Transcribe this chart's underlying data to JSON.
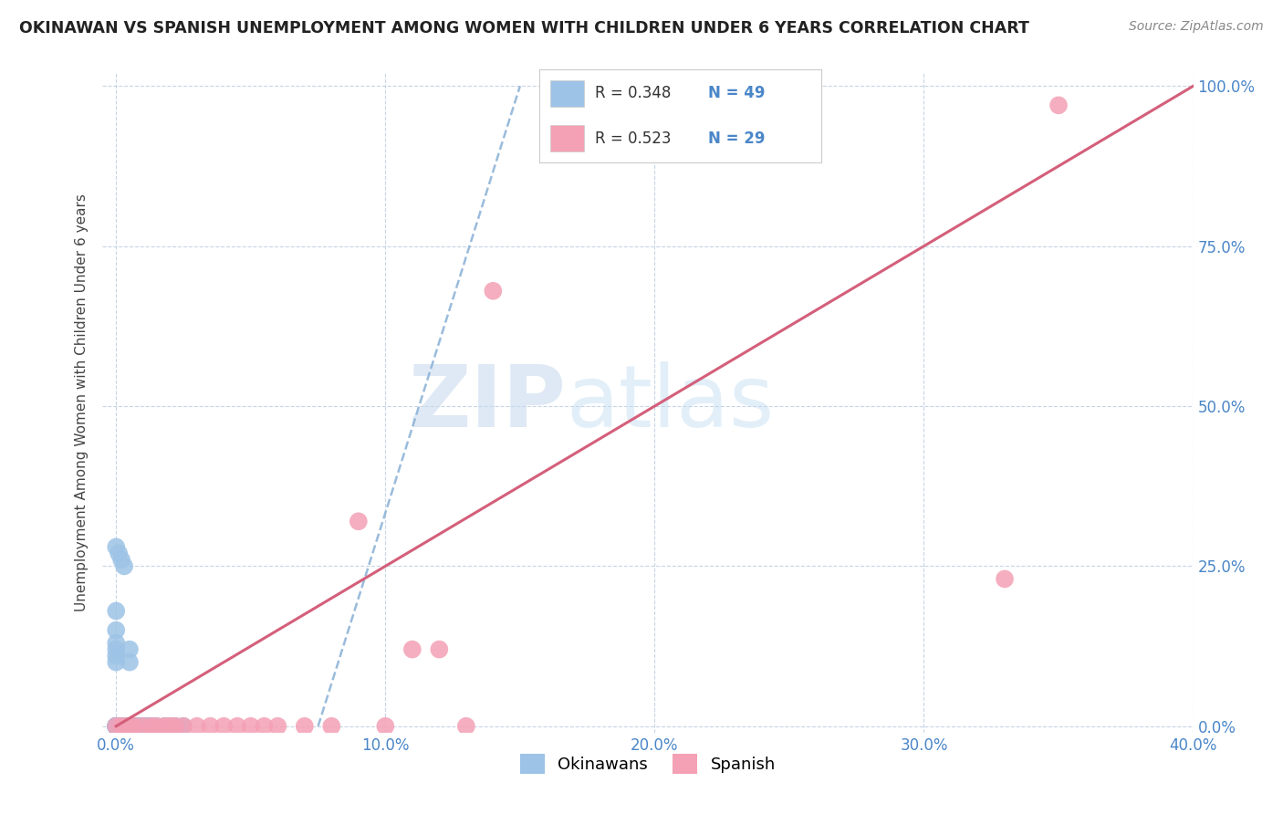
{
  "title": "OKINAWAN VS SPANISH UNEMPLOYMENT AMONG WOMEN WITH CHILDREN UNDER 6 YEARS CORRELATION CHART",
  "source": "Source: ZipAtlas.com",
  "ylabel": "Unemployment Among Women with Children Under 6 years",
  "x_tick_labels": [
    "0.0%",
    "10.0%",
    "20.0%",
    "30.0%",
    "40.0%"
  ],
  "x_tick_values": [
    0.0,
    10.0,
    20.0,
    30.0,
    40.0
  ],
  "y_tick_labels": [
    "0.0%",
    "25.0%",
    "50.0%",
    "75.0%",
    "100.0%"
  ],
  "y_tick_values": [
    0.0,
    25.0,
    50.0,
    75.0,
    100.0
  ],
  "xlim": [
    -0.5,
    40.0
  ],
  "ylim": [
    -1.0,
    102.0
  ],
  "okinawan_color": "#9dc3e6",
  "spanish_color": "#f4a0b5",
  "okinawan_R": 0.348,
  "okinawan_N": 49,
  "spanish_R": 0.523,
  "spanish_N": 29,
  "regression_okinawan_color": "#8fb4d8",
  "regression_spanish_color": "#d45f7a",
  "watermark_zip": "ZIP",
  "watermark_atlas": "atlas",
  "legend_label_okinawan": "Okinawans",
  "legend_label_spanish": "Spanish",
  "okinawan_x": [
    0.0,
    0.0,
    0.0,
    0.0,
    0.0,
    0.0,
    0.0,
    0.0,
    0.0,
    0.0,
    0.0,
    0.0,
    0.1,
    0.1,
    0.1,
    0.2,
    0.2,
    0.3,
    0.3,
    0.4,
    0.5,
    0.5,
    0.6,
    0.7,
    0.8,
    0.9,
    1.0,
    1.0,
    1.1,
    1.2,
    1.3,
    1.5,
    1.8,
    2.0,
    2.2,
    2.5,
    0.0,
    0.0,
    0.0,
    0.0,
    0.0,
    0.0,
    0.0,
    0.1,
    0.2,
    0.3,
    0.5,
    0.5,
    0.0
  ],
  "okinawan_y": [
    0.0,
    0.0,
    0.0,
    0.0,
    0.0,
    0.0,
    0.0,
    0.0,
    0.0,
    0.0,
    0.0,
    0.0,
    0.0,
    0.0,
    0.0,
    0.0,
    0.0,
    0.0,
    0.0,
    0.0,
    0.0,
    0.0,
    0.0,
    0.0,
    0.0,
    0.0,
    0.0,
    0.0,
    0.0,
    0.0,
    0.0,
    0.0,
    0.0,
    0.0,
    0.0,
    0.0,
    18.0,
    15.0,
    13.0,
    12.0,
    11.0,
    10.0,
    28.0,
    27.0,
    26.0,
    25.0,
    12.0,
    10.0,
    0.0
  ],
  "spanish_x": [
    0.0,
    0.2,
    0.4,
    0.5,
    0.7,
    1.0,
    1.3,
    1.5,
    1.8,
    2.0,
    2.2,
    2.5,
    3.0,
    3.5,
    4.0,
    4.5,
    5.0,
    5.5,
    6.0,
    7.0,
    8.0,
    9.0,
    10.0,
    11.0,
    12.0,
    13.0,
    14.0,
    33.0,
    35.0
  ],
  "spanish_y": [
    0.0,
    0.0,
    0.0,
    0.0,
    0.0,
    0.0,
    0.0,
    0.0,
    0.0,
    0.0,
    0.0,
    0.0,
    0.0,
    0.0,
    0.0,
    0.0,
    0.0,
    0.0,
    0.0,
    0.0,
    0.0,
    32.0,
    0.0,
    12.0,
    12.0,
    0.0,
    68.0,
    23.0,
    97.0
  ],
  "ok_line_x0": 7.5,
  "ok_line_y0": 0.0,
  "ok_line_x1": 15.0,
  "ok_line_y1": 100.0,
  "sp_line_x0": 0.0,
  "sp_line_y0": 0.0,
  "sp_line_x1": 40.0,
  "sp_line_y1": 100.0
}
